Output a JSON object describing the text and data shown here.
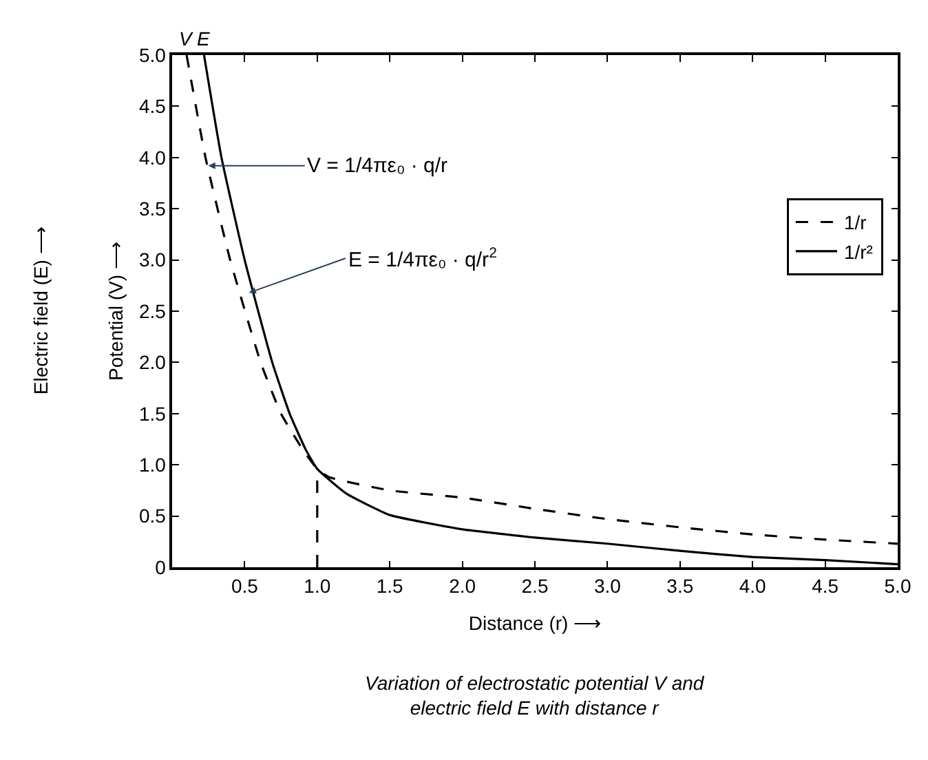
{
  "chart_data": {
    "type": "line",
    "title": "Variation of electrostatic potential V and electric field E with distance r",
    "xlabel": "Distance (r) ⟶",
    "ylabel": "Potential (V) ⟶",
    "y2label": "Electric field (E) ⟶",
    "series": [
      {
        "name": "1/r",
        "color": "#000000",
        "line_style": "dashed",
        "x": [
          0.1,
          0.23,
          0.4,
          0.61,
          0.75,
          0.9,
          1.0,
          1.08,
          1.5,
          2.0,
          2.5,
          3.0,
          3.5,
          4.0,
          4.5,
          5.0
        ],
        "values": [
          5.0,
          4.0,
          3.0,
          2.0,
          1.5,
          1.15,
          0.96,
          0.88,
          0.75,
          0.68,
          0.57,
          0.47,
          0.39,
          0.32,
          0.27,
          0.23
        ]
      },
      {
        "name": "1/r²",
        "color": "#000000",
        "line_style": "solid",
        "x": [
          0.22,
          0.34,
          0.5,
          0.69,
          0.81,
          0.92,
          1.0,
          1.2,
          1.5,
          2.0,
          2.5,
          3.0,
          3.5,
          4.0,
          4.5,
          5.0
        ],
        "values": [
          5.0,
          4.0,
          3.0,
          2.0,
          1.5,
          1.15,
          0.96,
          0.72,
          0.51,
          0.37,
          0.29,
          0.23,
          0.16,
          0.1,
          0.07,
          0.03
        ]
      },
      {
        "color": "#000000",
        "line_style": "dashed",
        "x": [
          1.0,
          1.0
        ],
        "values": [
          0,
          0.96
        ]
      }
    ],
    "annotations": [
      {
        "text": "V = 1/4πε₀ · q/r",
        "x": 0.25,
        "y": 3.92
      },
      {
        "text": "E = 1/4πε₀ · q/r$^{2}$",
        "x": 0.53,
        "y": 2.68
      },
      {
        "text": "V",
        "x": 0.1,
        "y": 5.0
      },
      {
        "text": "E",
        "x": 0.22,
        "y": 5.0
      }
    ],
    "xlim": [
      0,
      5.0
    ],
    "ylim": [
      0,
      5.0
    ],
    "xticks": [
      0.5,
      {
        "value": 1,
        "label": "1.0"
      },
      1.5,
      {
        "value": 2,
        "label": "2.0"
      },
      2.5,
      {
        "value": 3,
        "label": "3.0"
      },
      3.5,
      {
        "value": 4,
        "label": "4.0"
      },
      4.5,
      {
        "value": 5,
        "label": "5.0"
      }
    ],
    "yticks": [
      0,
      0.5,
      {
        "value": 1,
        "label": "1.0"
      },
      1.5,
      {
        "value": 2,
        "label": "2.0"
      },
      2.5,
      {
        "value": 3,
        "label": "3.0"
      },
      3.5,
      {
        "value": 4,
        "label": "4.0"
      },
      4.5,
      {
        "value": 5,
        "label": "5.0"
      }
    ],
    "grid": false,
    "legend": "top right",
    "marker": "none"
  }
}
